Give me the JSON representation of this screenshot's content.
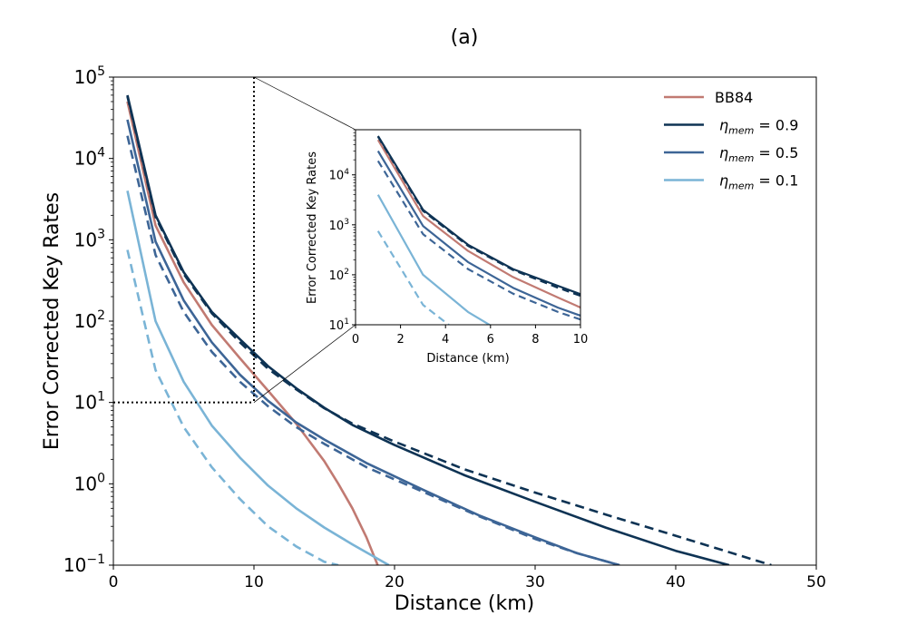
{
  "chart_data": {
    "type": "line",
    "title": "(a)",
    "xlabel": "Distance (km)",
    "ylabel": "Error Corrected Key Rates",
    "yscale": "log",
    "xlim": [
      0,
      50
    ],
    "ylim_exp": [
      -1,
      5
    ],
    "xticks": [
      "0",
      "10",
      "20",
      "30",
      "40",
      "50"
    ],
    "ytick_base": "10",
    "ytick_exps": [
      "−1",
      "0",
      "1",
      "2",
      "3",
      "4",
      "5"
    ],
    "legend": {
      "location": "upper right",
      "entries": [
        {
          "text": "BB84",
          "color": "#c17a72"
        },
        {
          "symbol": "η",
          "sub": "mem",
          "rest": " = 0.9",
          "color": "#0e3354"
        },
        {
          "symbol": "η",
          "sub": "mem",
          "rest": " = 0.5",
          "color": "#3d6596"
        },
        {
          "symbol": "η",
          "sub": "mem",
          "rest": " = 0.1",
          "color": "#7ab4d6"
        }
      ]
    },
    "zoom_box": {
      "x": [
        0,
        10
      ],
      "y": [
        10,
        100000
      ]
    },
    "series": [
      {
        "name": "BB84",
        "color": "#c17a72",
        "dash": false,
        "x": [
          1,
          3,
          5,
          7,
          9,
          11,
          13,
          15,
          16,
          17,
          18,
          18.8
        ],
        "y": [
          50000,
          1500,
          300,
          90,
          35,
          14,
          5.5,
          1.9,
          1.0,
          0.5,
          0.22,
          0.1
        ]
      },
      {
        "name": "ηmem = 0.9 (solid)",
        "color": "#0e3354",
        "dash": false,
        "x": [
          1,
          3,
          5,
          7,
          9,
          11,
          13,
          15,
          17,
          20,
          25,
          30,
          35,
          40,
          43.8
        ],
        "y": [
          60000,
          2000,
          400,
          130,
          60,
          28,
          15,
          8.6,
          5.3,
          3.0,
          1.27,
          0.6,
          0.29,
          0.15,
          0.1
        ]
      },
      {
        "name": "ηmem = 0.9 (dashed)",
        "color": "#0e3354",
        "dash": true,
        "x": [
          1,
          3,
          5,
          7,
          9,
          11,
          13,
          15,
          17,
          20,
          25,
          30,
          35,
          40,
          46.8
        ],
        "y": [
          58000,
          1900,
          380,
          125,
          55,
          26,
          14.5,
          8.5,
          5.5,
          3.3,
          1.5,
          0.78,
          0.42,
          0.23,
          0.1
        ]
      },
      {
        "name": "ηmem = 0.5 (solid)",
        "color": "#3d6596",
        "dash": false,
        "x": [
          1,
          3,
          5,
          7,
          9,
          11,
          13,
          15,
          18,
          22,
          26,
          30,
          33,
          36
        ],
        "y": [
          30000,
          950,
          180,
          55,
          22,
          10.5,
          5.7,
          3.5,
          1.8,
          0.85,
          0.41,
          0.22,
          0.14,
          0.1
        ]
      },
      {
        "name": "ηmem = 0.5 (dashed)",
        "color": "#3d6596",
        "dash": true,
        "x": [
          1,
          3,
          5,
          7,
          9,
          11,
          13,
          15,
          18,
          22,
          26,
          30,
          33,
          36
        ],
        "y": [
          19000,
          650,
          130,
          42,
          18,
          9.0,
          5.0,
          3.1,
          1.6,
          0.8,
          0.4,
          0.21,
          0.14,
          0.1
        ]
      },
      {
        "name": "ηmem = 0.1 (solid)",
        "color": "#7ab4d6",
        "dash": false,
        "x": [
          1,
          3,
          5,
          7,
          9,
          11,
          13,
          15,
          17,
          19.6
        ],
        "y": [
          4000,
          100,
          18,
          5.2,
          2.1,
          0.95,
          0.5,
          0.29,
          0.18,
          0.1
        ]
      },
      {
        "name": "ηmem = 0.1 (dashed)",
        "color": "#7ab4d6",
        "dash": true,
        "x": [
          1,
          3,
          5,
          7,
          9,
          11,
          13,
          15,
          16
        ],
        "y": [
          750,
          25,
          5.0,
          1.6,
          0.65,
          0.3,
          0.17,
          0.11,
          0.1
        ]
      }
    ],
    "inset": {
      "xlabel": "Distance (km)",
      "ylabel": "Error Corrected Key Rates",
      "xlim": [
        0,
        10
      ],
      "ylim": [
        10,
        80000
      ],
      "xticks": [
        "0",
        "2",
        "4",
        "6",
        "8",
        "10"
      ],
      "ytick_base": "10",
      "ytick_exps": [
        "1",
        "2",
        "3",
        "4"
      ]
    }
  }
}
